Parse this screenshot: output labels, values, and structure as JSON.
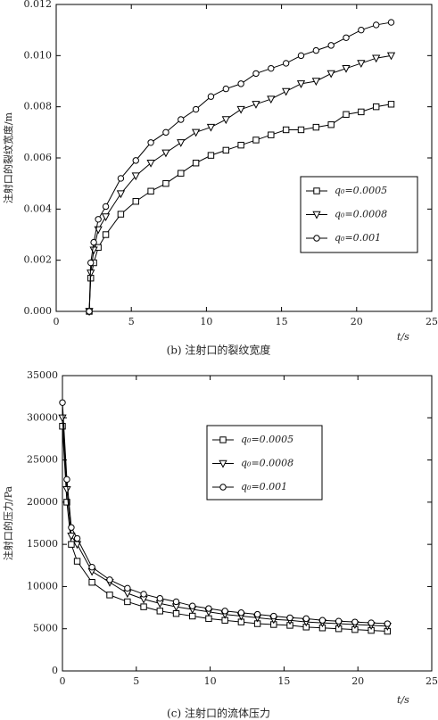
{
  "chart_data": [
    {
      "type": "line",
      "caption": "(b) 注射口的裂纹宽度",
      "xlabel": "t/s",
      "ylabel": "注射口的裂纹宽度/m",
      "x": [
        2.2,
        2.3,
        2.5,
        2.8,
        3.3,
        4.3,
        5.3,
        6.3,
        7.3,
        8.3,
        9.3,
        10.3,
        11.3,
        12.3,
        13.3,
        14.3,
        15.3,
        16.3,
        17.3,
        18.3,
        19.3,
        20.3,
        21.3,
        22.3
      ],
      "series": [
        {
          "name": "q₀=0.0005",
          "color": "#000000",
          "marker": "square",
          "values": [
            0,
            0.0013,
            0.0019,
            0.0025,
            0.003,
            0.0038,
            0.0043,
            0.0047,
            0.005,
            0.0054,
            0.0058,
            0.0061,
            0.0063,
            0.0065,
            0.0067,
            0.0069,
            0.0071,
            0.0071,
            0.0072,
            0.0073,
            0.0077,
            0.0078,
            0.008,
            0.0081
          ]
        },
        {
          "name": "q₀=0.0008",
          "color": "#000000",
          "marker": "triangle-down",
          "values": [
            0,
            0.0015,
            0.0024,
            0.0032,
            0.0037,
            0.0046,
            0.0053,
            0.0058,
            0.0062,
            0.0066,
            0.007,
            0.0072,
            0.0075,
            0.0079,
            0.0081,
            0.0083,
            0.0086,
            0.0089,
            0.009,
            0.0093,
            0.0095,
            0.0097,
            0.0099,
            0.01
          ]
        },
        {
          "name": "q₀=0.001",
          "color": "#000000",
          "marker": "circle",
          "values": [
            0,
            0.0019,
            0.0027,
            0.0036,
            0.0041,
            0.0052,
            0.0059,
            0.0066,
            0.007,
            0.0075,
            0.0079,
            0.0084,
            0.0087,
            0.0089,
            0.0093,
            0.0095,
            0.0097,
            0.01,
            0.0102,
            0.0104,
            0.0107,
            0.011,
            0.0112,
            0.0113
          ]
        }
      ],
      "xlim": [
        0,
        25
      ],
      "xticks": [
        0,
        5,
        10,
        15,
        20,
        25
      ],
      "ylim": [
        0,
        0.012
      ],
      "yticks": [
        {
          "value": 0,
          "label": "0.000"
        },
        0.002,
        0.004,
        0.006,
        0.008,
        {
          "value": 0.01,
          "label": "0.010"
        },
        {
          "value": 0.012,
          "label": "0.012"
        }
      ],
      "grid": false
    },
    {
      "type": "line",
      "caption": "(c) 注射口的流体压力",
      "xlabel": "t/s",
      "ylabel": "注射口的压力/Pa",
      "x": [
        0,
        0.3,
        0.6,
        1,
        2,
        3.2,
        4.4,
        5.5,
        6.6,
        7.7,
        8.8,
        9.9,
        11,
        12.1,
        13.2,
        14.3,
        15.4,
        16.5,
        17.6,
        18.7,
        19.8,
        20.9,
        22
      ],
      "series": [
        {
          "name": "q₀=0.0005",
          "color": "#000000",
          "marker": "square",
          "values": [
            29000,
            20000,
            15000,
            13000,
            10500,
            9000,
            8200,
            7600,
            7100,
            6800,
            6500,
            6200,
            6000,
            5800,
            5600,
            5500,
            5400,
            5200,
            5100,
            5000,
            4900,
            4800,
            4700
          ]
        },
        {
          "name": "q₀=0.0008",
          "color": "#000000",
          "marker": "triangle-down",
          "values": [
            30000,
            21500,
            16000,
            15000,
            11800,
            10500,
            9200,
            8500,
            8000,
            7600,
            7300,
            7000,
            6700,
            6500,
            6300,
            6100,
            6000,
            5800,
            5700,
            5600,
            5500,
            5400,
            5300
          ]
        },
        {
          "name": "q₀=0.001",
          "color": "#000000",
          "marker": "circle",
          "values": [
            31800,
            22700,
            17000,
            15700,
            12300,
            10800,
            9800,
            9100,
            8600,
            8200,
            7700,
            7400,
            7100,
            6900,
            6700,
            6500,
            6300,
            6200,
            6000,
            5900,
            5800,
            5700,
            5600
          ]
        }
      ],
      "xlim": [
        0,
        25
      ],
      "xticks": [
        0,
        5,
        10,
        15,
        20,
        25
      ],
      "ylim": [
        0,
        35000
      ],
      "yticks": [
        0,
        5000,
        10000,
        15000,
        20000,
        25000,
        30000,
        35000
      ],
      "grid": false
    }
  ]
}
